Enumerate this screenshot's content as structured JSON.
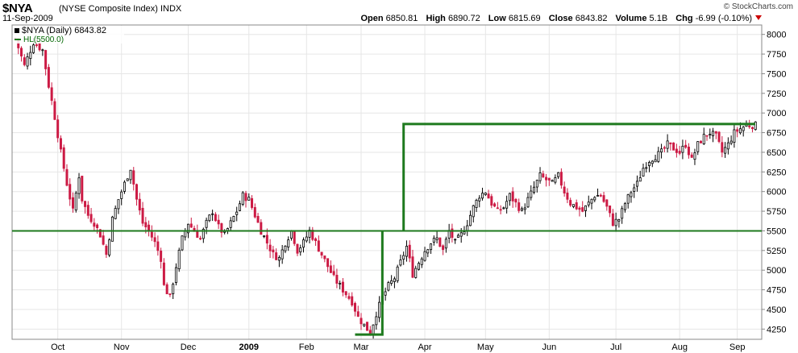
{
  "header": {
    "symbol": "$NYA",
    "name": "(NYSE Composite Index)",
    "exchange": "INDX",
    "date": "11-Sep-2009",
    "copyright": "© StockCharts.com",
    "open_label": "Open",
    "open": "6850.81",
    "high_label": "High",
    "high": "6890.72",
    "low_label": "Low",
    "low": "6815.69",
    "close_label": "Close",
    "close": "6843.82",
    "volume_label": "Volume",
    "volume": "5.1B",
    "chg_label": "Chg",
    "chg": "-6.99 (-0.10%)"
  },
  "legend": {
    "series_label": "$NYA (Daily) 6843.82",
    "hl_label": "HL(5500.0)"
  },
  "colors": {
    "up": "#000000",
    "down": "#cc1a44",
    "line": "#1e7a1e",
    "grid": "#e6e6e6"
  },
  "chart_data": {
    "type": "candlestick",
    "title": "$NYA (NYSE Composite Index) INDX",
    "y_ticks": [
      4250,
      4500,
      4750,
      5000,
      5250,
      5500,
      5750,
      6000,
      6250,
      6500,
      6750,
      7000,
      7250,
      7500,
      7750,
      8000
    ],
    "ylim": [
      4120,
      8120
    ],
    "x_tick_labels": [
      "Oct",
      "Nov",
      "Dec",
      "2009",
      "Feb",
      "Mar",
      "Apr",
      "May",
      "Jun",
      "Jul",
      "Aug",
      "Sep"
    ],
    "x_tick_days": [
      14,
      35,
      57,
      77,
      96,
      114,
      135,
      155,
      176,
      198,
      219,
      238
    ],
    "n_days": 245,
    "closes": [
      [
        0,
        7950
      ],
      [
        3,
        7600
      ],
      [
        6,
        7900
      ],
      [
        9,
        7800
      ],
      [
        11,
        7350
      ],
      [
        13,
        6950
      ],
      [
        15,
        6500
      ],
      [
        17,
        6100
      ],
      [
        19,
        5750
      ],
      [
        21,
        6200
      ],
      [
        22,
        5900
      ],
      [
        24,
        5700
      ],
      [
        26,
        5600
      ],
      [
        28,
        5450
      ],
      [
        30,
        5200
      ],
      [
        32,
        5650
      ],
      [
        34,
        5900
      ],
      [
        36,
        6100
      ],
      [
        38,
        6300
      ],
      [
        40,
        5900
      ],
      [
        42,
        5600
      ],
      [
        44,
        5500
      ],
      [
        46,
        5350
      ],
      [
        48,
        5150
      ],
      [
        49,
        4800
      ],
      [
        51,
        4650
      ],
      [
        53,
        5050
      ],
      [
        55,
        5400
      ],
      [
        57,
        5600
      ],
      [
        59,
        5500
      ],
      [
        61,
        5400
      ],
      [
        63,
        5600
      ],
      [
        65,
        5750
      ],
      [
        67,
        5550
      ],
      [
        69,
        5450
      ],
      [
        71,
        5600
      ],
      [
        73,
        5750
      ],
      [
        75,
        5950
      ],
      [
        77,
        5900
      ],
      [
        79,
        5700
      ],
      [
        81,
        5500
      ],
      [
        83,
        5350
      ],
      [
        85,
        5200
      ],
      [
        87,
        5150
      ],
      [
        89,
        5350
      ],
      [
        91,
        5500
      ],
      [
        93,
        5250
      ],
      [
        95,
        5350
      ],
      [
        97,
        5500
      ],
      [
        99,
        5350
      ],
      [
        101,
        5200
      ],
      [
        103,
        5050
      ],
      [
        105,
        4900
      ],
      [
        107,
        4800
      ],
      [
        109,
        4700
      ],
      [
        111,
        4600
      ],
      [
        113,
        4400
      ],
      [
        115,
        4300
      ],
      [
        117,
        4200
      ],
      [
        119,
        4450
      ],
      [
        121,
        4650
      ],
      [
        123,
        4800
      ],
      [
        125,
        4900
      ],
      [
        127,
        5100
      ],
      [
        129,
        5300
      ],
      [
        131,
        4950
      ],
      [
        133,
        5100
      ],
      [
        135,
        5250
      ],
      [
        137,
        5350
      ],
      [
        139,
        5400
      ],
      [
        141,
        5250
      ],
      [
        143,
        5500
      ],
      [
        145,
        5350
      ],
      [
        147,
        5450
      ],
      [
        149,
        5600
      ],
      [
        151,
        5800
      ],
      [
        153,
        5950
      ],
      [
        155,
        6000
      ],
      [
        157,
        5850
      ],
      [
        159,
        5750
      ],
      [
        161,
        5800
      ],
      [
        163,
        5950
      ],
      [
        165,
        5850
      ],
      [
        167,
        5750
      ],
      [
        169,
        5900
      ],
      [
        171,
        6050
      ],
      [
        173,
        6200
      ],
      [
        175,
        6150
      ],
      [
        177,
        6100
      ],
      [
        179,
        6200
      ],
      [
        181,
        6000
      ],
      [
        183,
        5850
      ],
      [
        185,
        5800
      ],
      [
        187,
        5750
      ],
      [
        189,
        5850
      ],
      [
        191,
        5950
      ],
      [
        193,
        5950
      ],
      [
        195,
        5800
      ],
      [
        197,
        5600
      ],
      [
        199,
        5650
      ],
      [
        201,
        5850
      ],
      [
        203,
        6000
      ],
      [
        205,
        6100
      ],
      [
        207,
        6300
      ],
      [
        209,
        6400
      ],
      [
        211,
        6450
      ],
      [
        213,
        6500
      ],
      [
        215,
        6600
      ],
      [
        217,
        6550
      ],
      [
        219,
        6500
      ],
      [
        221,
        6600
      ],
      [
        223,
        6400
      ],
      [
        225,
        6600
      ],
      [
        227,
        6700
      ],
      [
        229,
        6750
      ],
      [
        231,
        6700
      ],
      [
        233,
        6500
      ],
      [
        235,
        6600
      ],
      [
        237,
        6750
      ],
      [
        239,
        6800
      ],
      [
        241,
        6843.82
      ]
    ],
    "overlays": {
      "horizontal_level": 5500,
      "upper_level": 6860,
      "upper_start_day": 128,
      "bracket_low": 4180,
      "bracket_start_day": 112,
      "bracket_end_day": 121
    }
  }
}
